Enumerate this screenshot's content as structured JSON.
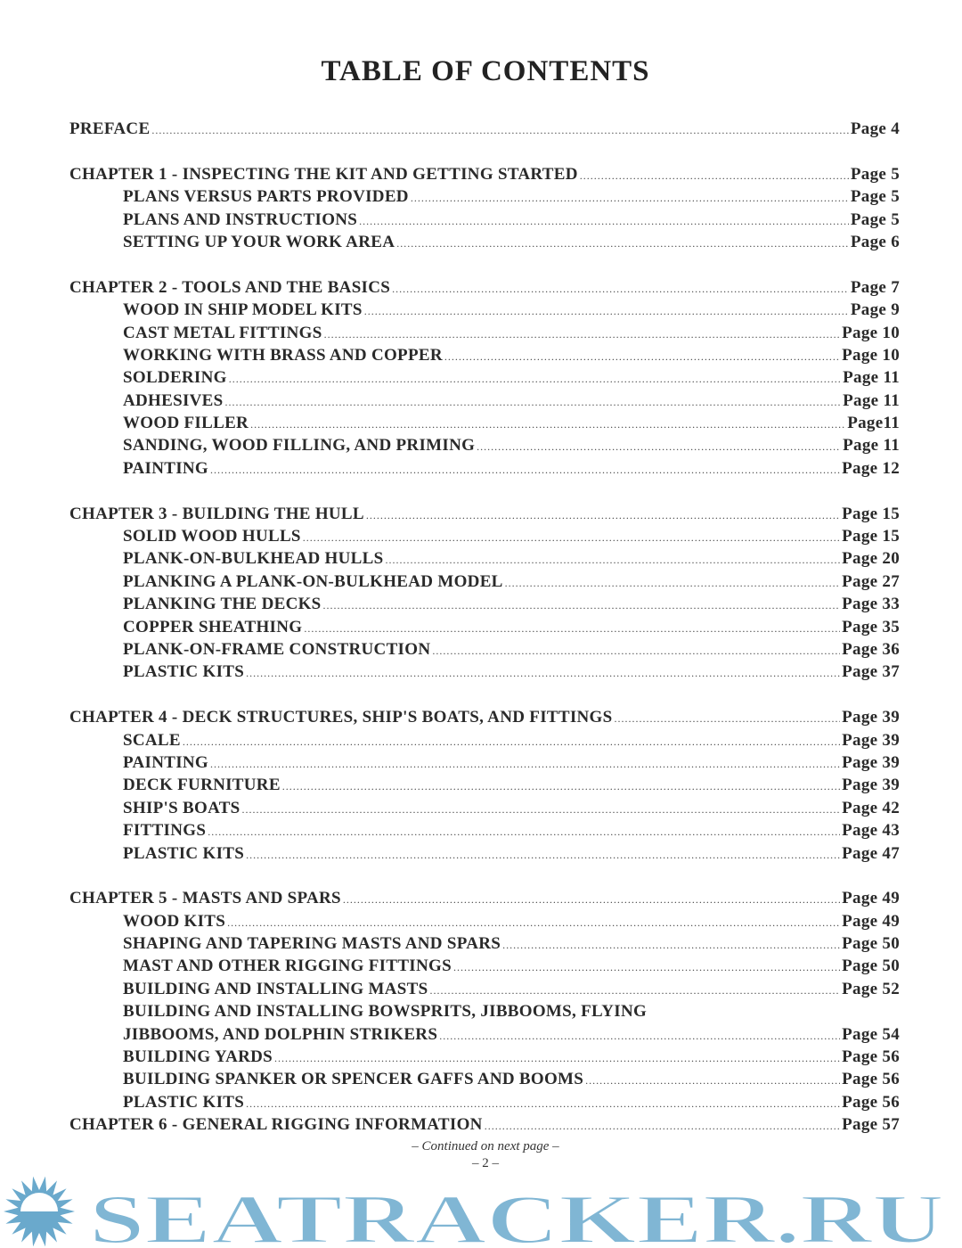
{
  "title": "TABLE OF CONTENTS",
  "groups": [
    {
      "entries": [
        {
          "label": "PREFACE",
          "page": "Page 4",
          "level": 0
        }
      ]
    },
    {
      "entries": [
        {
          "label": "CHAPTER 1 - INSPECTING THE KIT AND GETTING STARTED",
          "page": "Page 5",
          "level": 0
        },
        {
          "label": "PLANS VERSUS PARTS PROVIDED",
          "page": "Page 5",
          "level": 1
        },
        {
          "label": "PLANS AND INSTRUCTIONS",
          "page": "Page 5",
          "level": 1
        },
        {
          "label": "SETTING UP YOUR WORK AREA",
          "page": "Page 6",
          "level": 1
        }
      ]
    },
    {
      "entries": [
        {
          "label": "CHAPTER 2 - TOOLS AND THE BASICS",
          "page": "Page 7",
          "level": 0
        },
        {
          "label": "WOOD IN SHIP MODEL KITS",
          "page": "Page 9",
          "level": 1
        },
        {
          "label": "CAST METAL FITTINGS",
          "page": "Page 10",
          "level": 1
        },
        {
          "label": "WORKING WITH BRASS AND COPPER",
          "page": "Page 10",
          "level": 1
        },
        {
          "label": "SOLDERING",
          "page": "Page 11",
          "level": 1
        },
        {
          "label": "ADHESIVES",
          "page": "Page 11",
          "level": 1
        },
        {
          "label": "WOOD FILLER",
          "page": "Page11",
          "level": 1
        },
        {
          "label": "SANDING, WOOD FILLING, AND PRIMING",
          "page": "Page 11",
          "level": 1
        },
        {
          "label": "PAINTING",
          "page": "Page 12",
          "level": 1
        }
      ]
    },
    {
      "entries": [
        {
          "label": "CHAPTER 3 - BUILDING THE HULL",
          "page": "Page 15",
          "level": 0
        },
        {
          "label": "SOLID WOOD HULLS",
          "page": "Page 15",
          "level": 1
        },
        {
          "label": "PLANK-ON-BULKHEAD HULLS",
          "page": "Page 20",
          "level": 1
        },
        {
          "label": "PLANKING A PLANK-ON-BULKHEAD MODEL",
          "page": "Page 27",
          "level": 1
        },
        {
          "label": "PLANKING THE DECKS",
          "page": "Page 33",
          "level": 1
        },
        {
          "label": "COPPER SHEATHING",
          "page": "Page 35",
          "level": 1
        },
        {
          "label": "PLANK-ON-FRAME CONSTRUCTION",
          "page": "Page 36",
          "level": 1
        },
        {
          "label": "PLASTIC KITS",
          "page": "Page 37",
          "level": 1
        }
      ]
    },
    {
      "entries": [
        {
          "label": "CHAPTER 4 - DECK STRUCTURES, SHIP'S BOATS, AND FITTINGS",
          "page": "Page 39",
          "level": 0
        },
        {
          "label": "SCALE",
          "page": "Page 39",
          "level": 1
        },
        {
          "label": "PAINTING",
          "page": "Page 39",
          "level": 1
        },
        {
          "label": "DECK FURNITURE",
          "page": "Page 39",
          "level": 1
        },
        {
          "label": "SHIP'S BOATS",
          "page": "Page 42",
          "level": 1
        },
        {
          "label": "FITTINGS",
          "page": "Page 43",
          "level": 1
        },
        {
          "label": "PLASTIC KITS",
          "page": "Page 47",
          "level": 1
        }
      ]
    },
    {
      "nogap": true,
      "entries": [
        {
          "label": "CHAPTER 5 - MASTS AND SPARS",
          "page": "Page 49",
          "level": 0
        },
        {
          "label": "WOOD KITS",
          "page": "Page 49",
          "level": 1
        },
        {
          "label": "SHAPING AND TAPERING MASTS AND SPARS",
          "page": "Page 50",
          "level": 1
        },
        {
          "label": "MAST AND OTHER RIGGING FITTINGS",
          "page": "Page 50",
          "level": 1
        },
        {
          "label": "BUILDING AND INSTALLING MASTS",
          "page": "Page 52",
          "level": 1
        },
        {
          "label": "BUILDING AND INSTALLING BOWSPRITS, JIBBOOMS, FLYING",
          "page": "",
          "level": 1
        },
        {
          "label": "JIBBOOMS,  AND DOLPHIN STRIKERS",
          "page": "Page 54",
          "level": 1
        },
        {
          "label": "BUILDING YARDS",
          "page": "Page 56",
          "level": 1
        },
        {
          "label": "BUILDING SPANKER OR SPENCER GAFFS AND BOOMS",
          "page": "Page 56",
          "level": 1
        },
        {
          "label": "PLASTIC KITS",
          "page": "Page 56",
          "level": 1
        }
      ]
    },
    {
      "entries": [
        {
          "label": "CHAPTER 6 - GENERAL RIGGING INFORMATION",
          "page": "Page 57",
          "level": 0
        }
      ]
    }
  ],
  "footer": {
    "continued": "– Continued on next page –",
    "page_number": "– 2 –"
  },
  "watermark": {
    "text": "SEATRACKER.RU",
    "color": "#6aa9cc",
    "icon": "sun-icon"
  }
}
